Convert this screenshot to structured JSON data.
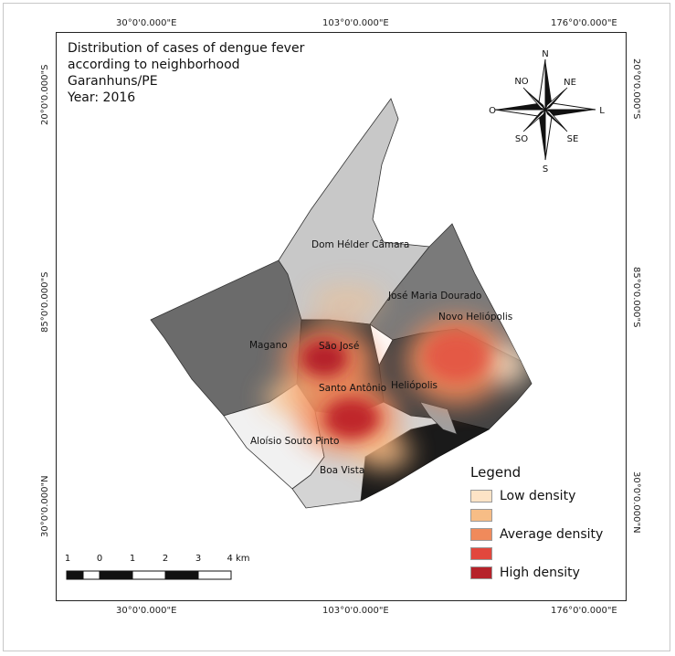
{
  "map": {
    "title_lines": [
      "Distribution of cases of dengue fever",
      "according to neighborhood",
      "Garanhuns/PE",
      "Year: 2016"
    ],
    "coords": {
      "top": [
        "30°0'0.000\"E",
        "103°0'0.000\"E",
        "176°0'0.000\"E"
      ],
      "bottom": [
        "30°0'0.000\"E",
        "103°0'0.000\"E",
        "176°0'0.000\"E"
      ],
      "left": [
        "20°0'0.000\"S",
        "85°0'0.000\"S",
        "30°0'0.000\"N"
      ],
      "right": [
        "20°0'0.000\"S",
        "85°0'0.000\"S",
        "30°0'0.000\"N"
      ]
    },
    "compass": {
      "N": "N",
      "NE": "NE",
      "L": "L",
      "SE": "SE",
      "S": "S",
      "SO": "SO",
      "O": "O",
      "NO": "NO"
    },
    "neighborhoods": [
      "Dom Hélder Câmara",
      "José Maria Dourado",
      "Novo Heliópolis",
      "Magano",
      "São José",
      "Santo Antônio",
      "Heliópolis",
      "Aloísio Souto Pinto",
      "Boa Vista"
    ],
    "legend": {
      "title": "Legend",
      "items": [
        {
          "label": "Low density",
          "color": "#fde3c6"
        },
        {
          "label": "",
          "color": "#f7bd86"
        },
        {
          "label": "Average density",
          "color": "#f08a5b"
        },
        {
          "label": "",
          "color": "#e2473d"
        },
        {
          "label": "High density",
          "color": "#b6222a"
        }
      ]
    },
    "scale": {
      "labels": [
        "1",
        "0",
        "1",
        "2",
        "3",
        "4 km"
      ]
    },
    "colors": {
      "region_light": "#f1f1f1",
      "region_mid": "#c8c8c8",
      "region_dark": "#6b6b6b",
      "region_darkest": "#1a1a1a"
    }
  }
}
